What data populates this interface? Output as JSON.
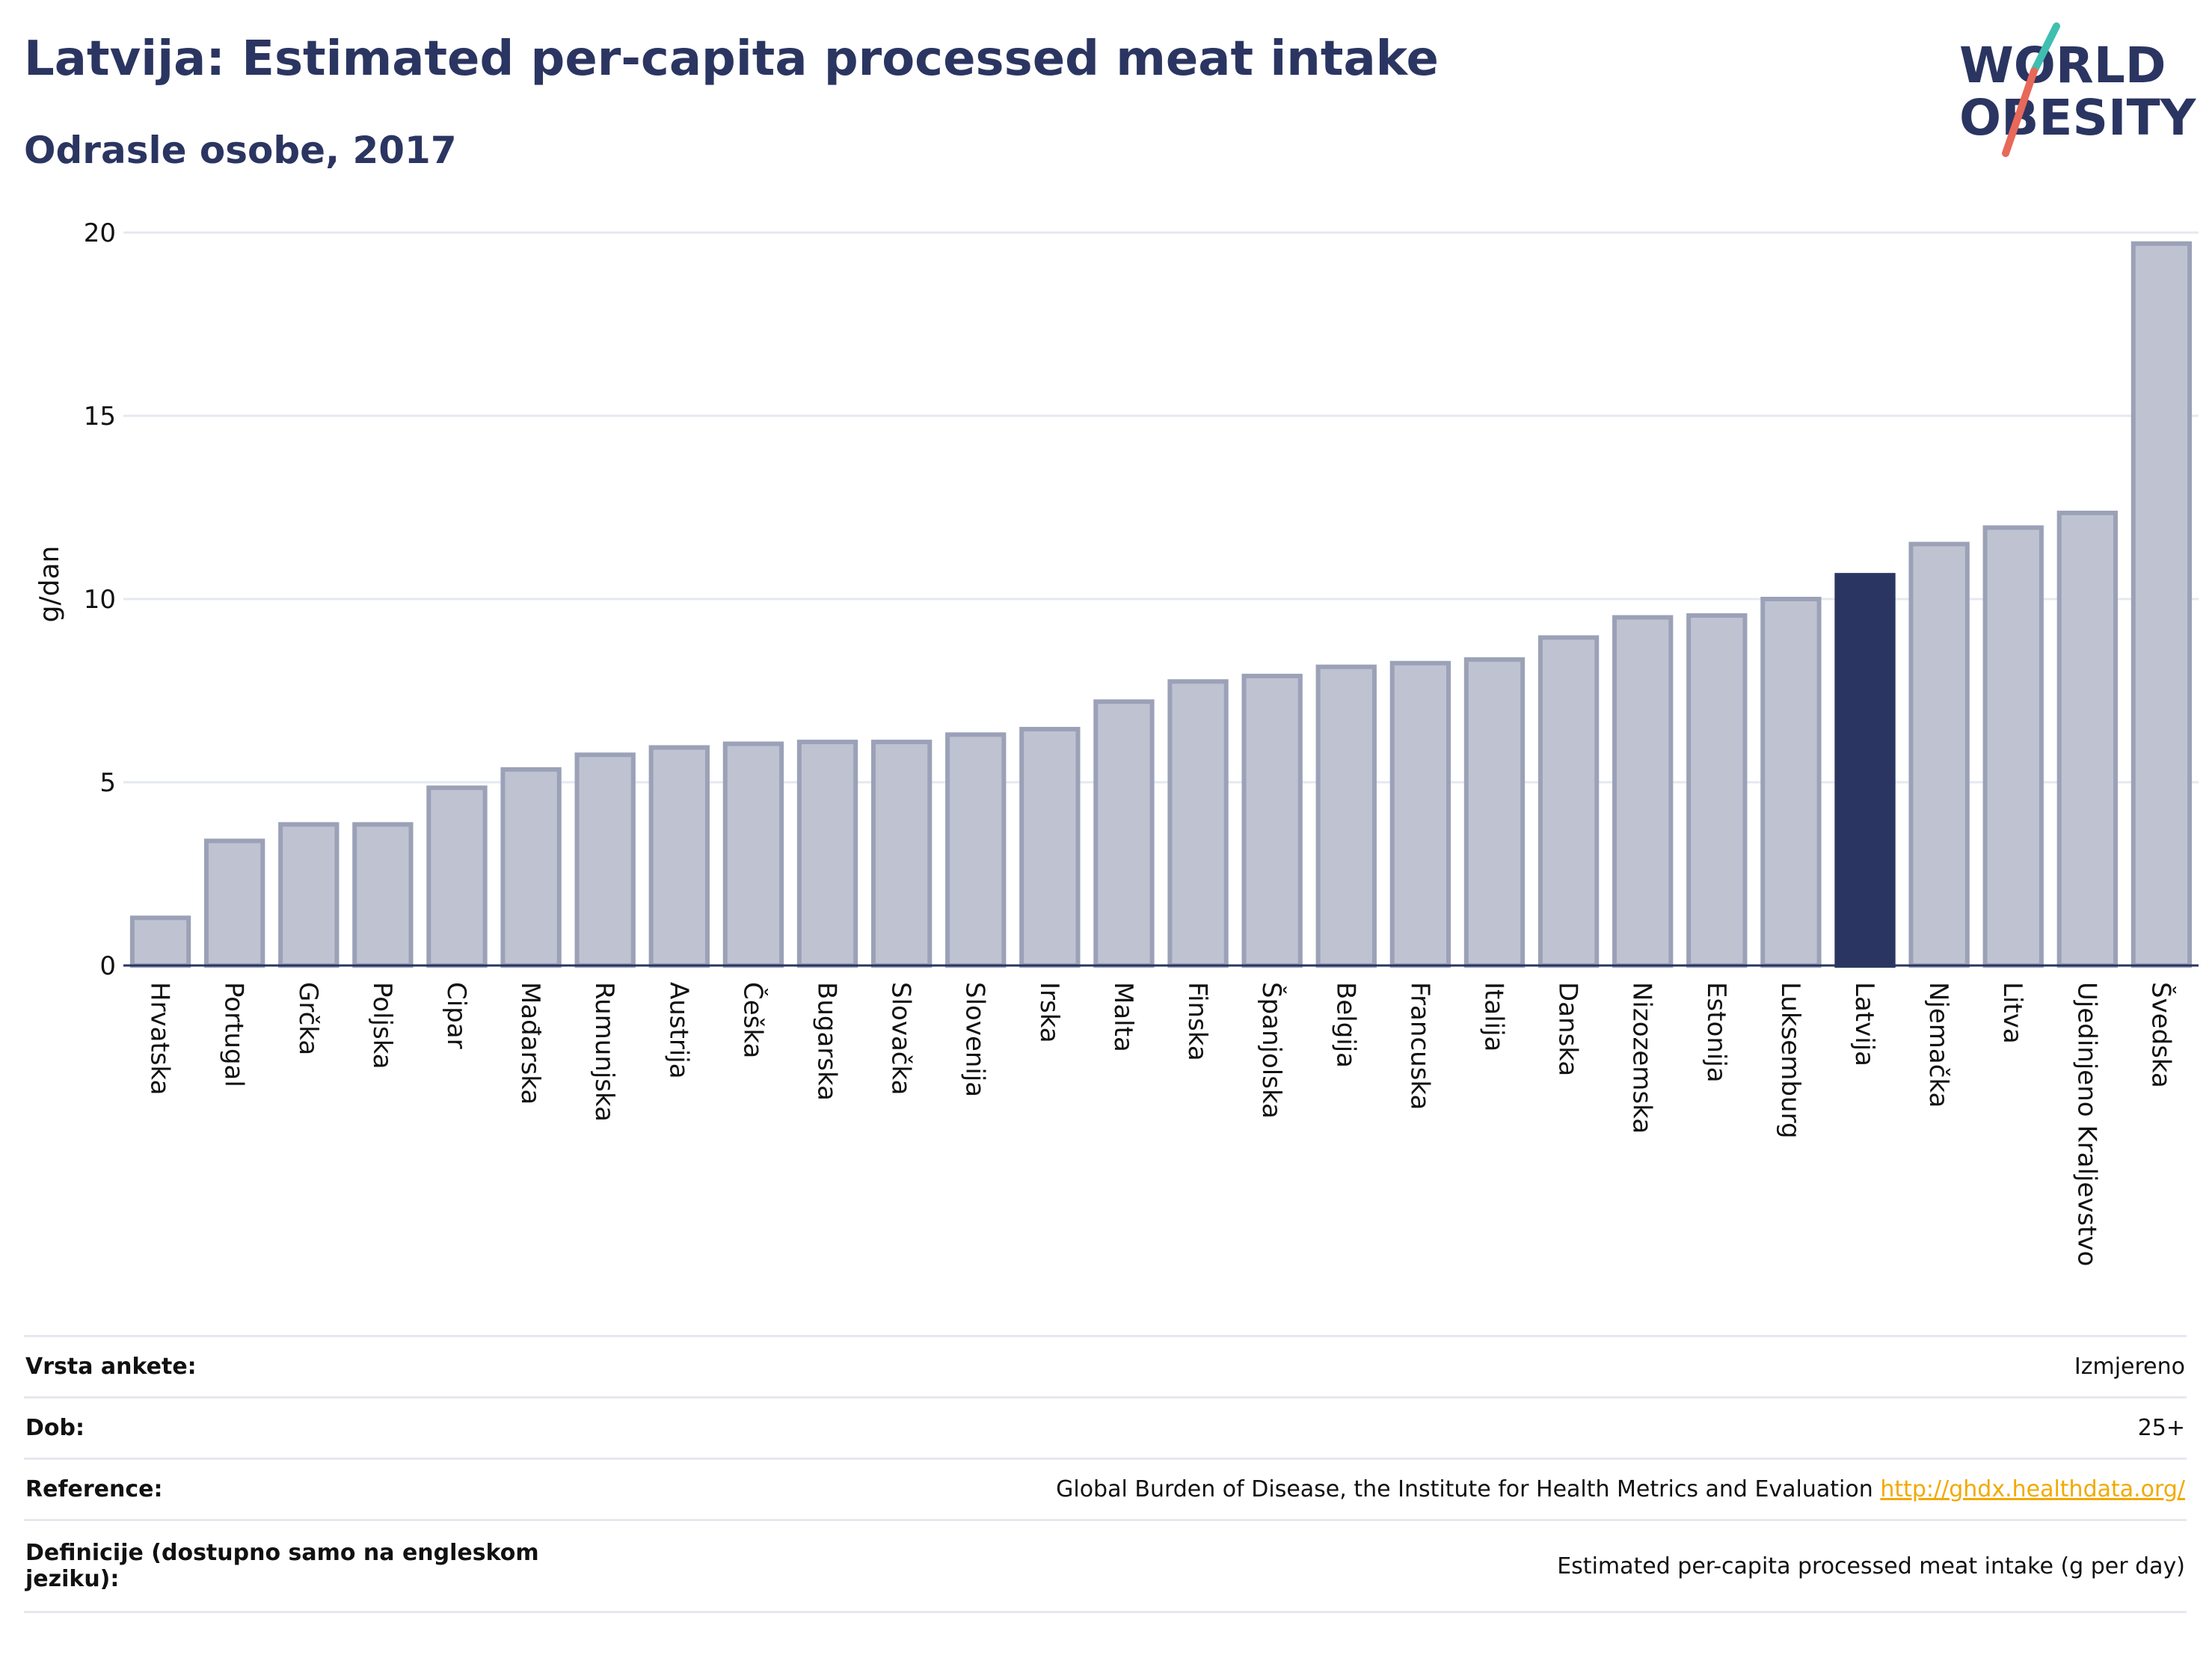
{
  "header": {
    "title": "Latvija: Estimated per-capita processed meat intake",
    "subtitle": "Odrasle osobe, 2017"
  },
  "logo": {
    "line1": "WORLD",
    "line2": "OBESITY",
    "colors": {
      "text": "#2b3561",
      "slash_red": "#e8685a",
      "slash_teal": "#3fbfb1"
    }
  },
  "colors": {
    "bar": "#bfc3d1",
    "bar_edge": "#9ba1b7",
    "highlight": "#2b3561",
    "grid": "#e6e8f0",
    "axis": "#2b3561",
    "link": "#f2a900"
  },
  "chart_data": {
    "type": "bar",
    "ylabel": "g/dan",
    "ylim": [
      0,
      20
    ],
    "yticks": [
      0,
      5,
      10,
      15,
      20
    ],
    "grid": true,
    "highlight": "Latvija",
    "categories": [
      "Hrvatska",
      "Portugal",
      "Grčka",
      "Poljska",
      "Cipar",
      "Mađarska",
      "Rumunjska",
      "Austrija",
      "Češka",
      "Bugarska",
      "Slovačka",
      "Slovenija",
      "Irska",
      "Malta",
      "Finska",
      "Španjolska",
      "Belgija",
      "Francuska",
      "Italija",
      "Danska",
      "Nizozemska",
      "Estonija",
      "Luksemburg",
      "Latvija",
      "Njemačka",
      "Litva",
      "Ujedinjeno Kraljevstvo",
      "Švedska"
    ],
    "values": [
      1.3,
      3.4,
      3.85,
      3.85,
      4.85,
      5.35,
      5.75,
      5.95,
      6.05,
      6.1,
      6.1,
      6.3,
      6.45,
      7.2,
      7.75,
      7.9,
      8.15,
      8.25,
      8.35,
      8.95,
      9.5,
      9.55,
      10.0,
      10.65,
      11.5,
      11.95,
      12.35,
      19.7
    ]
  },
  "info": {
    "survey_type_label": "Vrsta ankete:",
    "survey_type_value": "Izmjereno",
    "age_label": "Dob:",
    "age_value": "25+",
    "reference_label": "Reference:",
    "reference_value": "Global Burden of Disease, the Institute for Health Metrics and Evaluation",
    "reference_link": "http://ghdx.healthdata.org/",
    "definition_label": "Definicije (dostupno samo na engleskom jeziku):",
    "definition_value": "Estimated per-capita processed meat intake (g per day)"
  }
}
